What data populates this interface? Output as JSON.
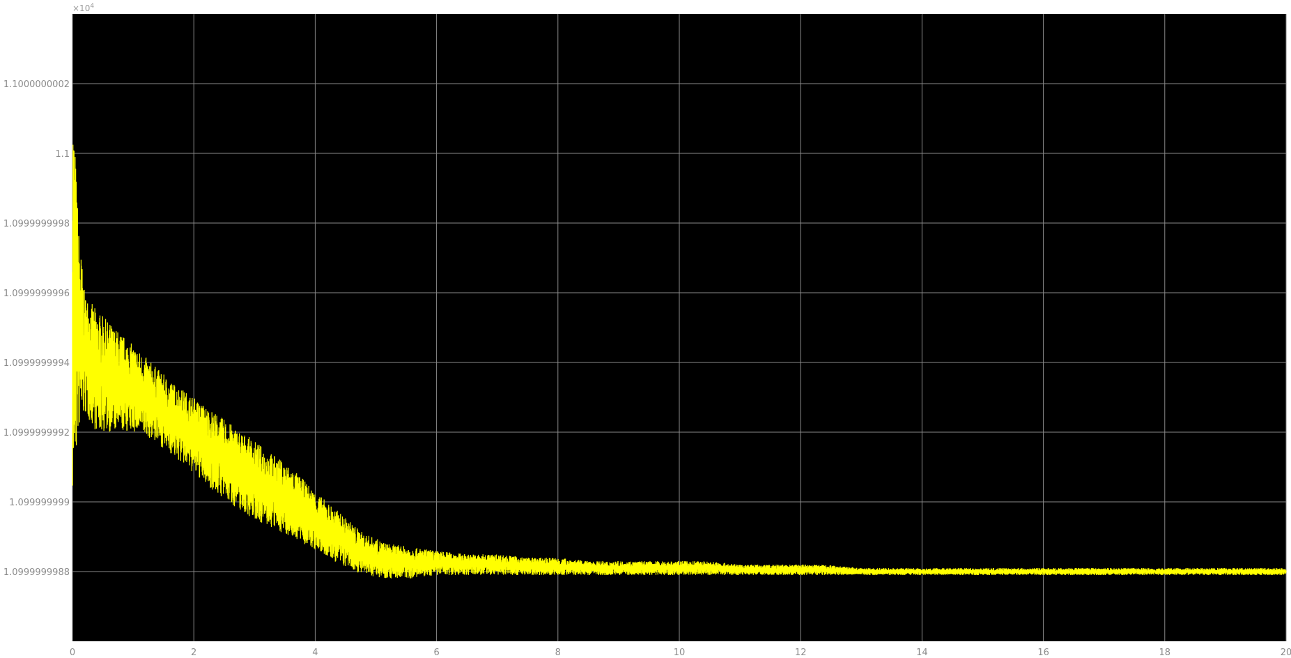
{
  "chart_data": {
    "type": "line",
    "title": "",
    "xlabel": "",
    "ylabel": "",
    "y_exponent_label": "×10",
    "y_exponent_power": "4",
    "xlim": [
      0,
      20
    ],
    "ylim": [
      1.0999999986,
      1.1000000004
    ],
    "x_ticks": [
      {
        "value": 0,
        "label": "0"
      },
      {
        "value": 2,
        "label": "2"
      },
      {
        "value": 4,
        "label": "4"
      },
      {
        "value": 6,
        "label": "6"
      },
      {
        "value": 8,
        "label": "8"
      },
      {
        "value": 10,
        "label": "10"
      },
      {
        "value": 12,
        "label": "12"
      },
      {
        "value": 14,
        "label": "14"
      },
      {
        "value": 16,
        "label": "16"
      },
      {
        "value": 18,
        "label": "18"
      },
      {
        "value": 20,
        "label": "20"
      }
    ],
    "y_ticks": [
      {
        "value": 1.0999999988,
        "label": "1.0999999988"
      },
      {
        "value": 1.099999999,
        "label": "1.099999999"
      },
      {
        "value": 1.0999999992,
        "label": "1.0999999992"
      },
      {
        "value": 1.0999999994,
        "label": "1.0999999994"
      },
      {
        "value": 1.0999999996,
        "label": "1.0999999996"
      },
      {
        "value": 1.0999999998,
        "label": "1.0999999998"
      },
      {
        "value": 1.1,
        "label": "1.1"
      },
      {
        "value": 1.1000000002,
        "label": "1.1000000002"
      }
    ],
    "grid": true,
    "legend": "none",
    "background_color": "#000000",
    "grid_color": "#8a8a8a",
    "tick_label_color": "#8c8c8c",
    "series": [
      {
        "color": "#ffff00",
        "envelope": {
          "x": [
            0,
            0.05,
            0.1,
            0.2,
            0.4,
            0.7,
            1.0,
            1.3,
            1.6,
            2.0,
            2.4,
            2.8,
            3.2,
            3.6,
            4.0,
            4.4,
            4.8,
            5.2,
            5.6,
            6.0,
            6.5,
            7.0,
            7.5,
            8.0,
            8.5,
            9.0,
            9.5,
            10.0,
            10.5,
            11.0,
            11.5,
            12.0,
            12.4,
            13.0,
            13.5,
            14.0,
            15.0,
            16.0,
            17.0,
            18.0,
            19.0,
            20.0
          ],
          "upper": [
            1.1000000002,
            1.1,
            1.0999999998,
            1.0999999996,
            1.09999999955,
            1.0999999995,
            1.09999999945,
            1.0999999994,
            1.09999999935,
            1.0999999993,
            1.09999999925,
            1.0999999992,
            1.09999999915,
            1.0999999991,
            1.09999999903,
            1.09999999897,
            1.09999999891,
            1.09999999888,
            1.09999999887,
            1.09999999886,
            1.09999999885,
            1.09999999885,
            1.09999999884,
            1.09999999884,
            1.09999999883,
            1.09999999883,
            1.09999999883,
            1.09999999883,
            1.09999999883,
            1.09999999882,
            1.09999999882,
            1.09999999882,
            1.09999999882,
            1.09999999881,
            1.09999999881,
            1.09999999881,
            1.09999999881,
            1.09999999881,
            1.09999999881,
            1.09999999881,
            1.09999999881,
            1.09999999881
          ],
          "lower": [
            1.099999999,
            1.0999999991,
            1.0999999992,
            1.09999999925,
            1.0999999992,
            1.0999999992,
            1.0999999992,
            1.09999999918,
            1.09999999914,
            1.09999999908,
            1.09999999902,
            1.09999999897,
            1.09999999893,
            1.0999999989,
            1.09999999886,
            1.09999999882,
            1.09999999879,
            1.09999999878,
            1.09999999878,
            1.09999999879,
            1.09999999879,
            1.09999999879,
            1.09999999879,
            1.09999999879,
            1.09999999879,
            1.09999999879,
            1.09999999879,
            1.09999999879,
            1.09999999879,
            1.09999999879,
            1.09999999879,
            1.09999999879,
            1.09999999879,
            1.09999999879,
            1.09999999879,
            1.09999999879,
            1.09999999879,
            1.09999999879,
            1.09999999879,
            1.09999999879,
            1.09999999879,
            1.09999999879
          ]
        }
      }
    ]
  }
}
